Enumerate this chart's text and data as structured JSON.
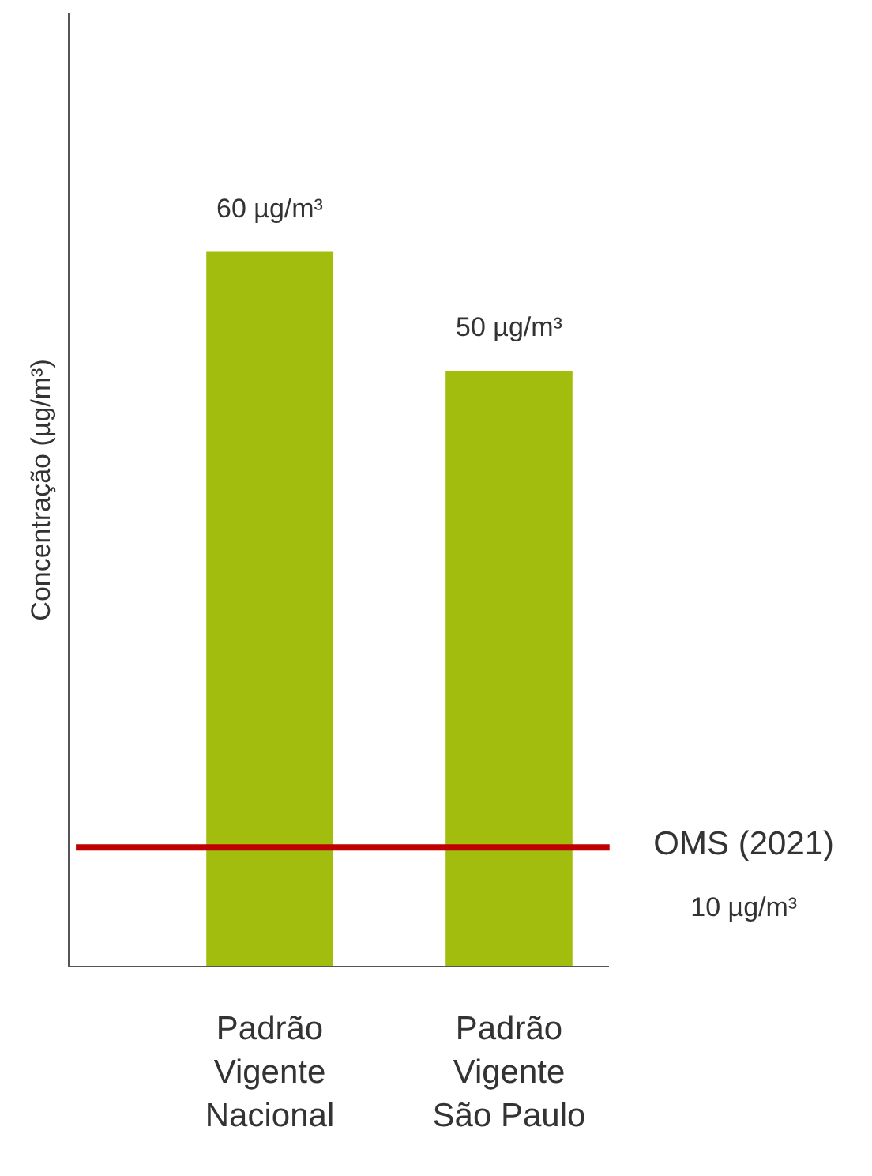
{
  "chart_data": {
    "type": "bar",
    "ylabel": "Concentração (µg/m³)",
    "categories": [
      "Padrão\nVigente\nNacional",
      "Padrão\nVigente\nSão Paulo"
    ],
    "values": [
      60,
      50
    ],
    "value_labels": [
      "60 µg/m³",
      "50 µg/m³"
    ],
    "color": "#a3bd0f",
    "ylim": [
      0,
      80
    ],
    "grid": false,
    "ref_lines": [
      {
        "axis": "y",
        "value": 10,
        "label": "OMS (2021)\n10 µg/m³",
        "color": "#c00000"
      }
    ]
  }
}
